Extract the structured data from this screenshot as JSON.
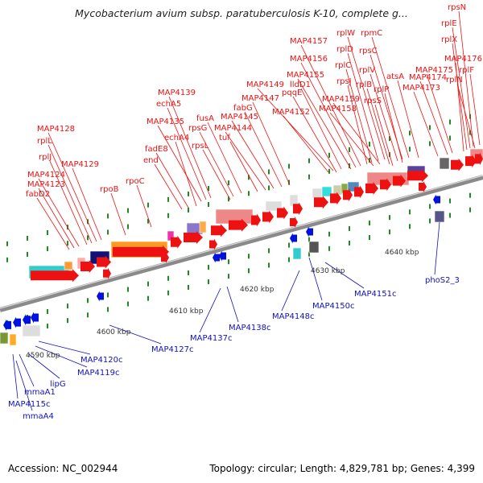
{
  "header": {
    "title": "Mycobacterium avium subsp. paratuberculosis K-10, complete g..."
  },
  "footer": {
    "accession": "Accession: NC_002944",
    "summary": "Topology: circular; Length: 4,829,781 bp; Genes: 4,399"
  },
  "colors": {
    "forward_label": "#ee1111",
    "reverse_label": "#1111bb",
    "forward_gene": "#ee1111",
    "reverse_gene": "#0011dd",
    "backbone": "#888888"
  },
  "scale_labels": [
    "4590 kbp",
    "4600 kbp",
    "4610 kbp",
    "4620 kbp",
    "4630 kbp",
    "4640 kbp"
  ],
  "forward_labels": [
    "rpsN",
    "rplE",
    "rplX",
    "MAP4176",
    "rplF",
    "MAP4175",
    "rplN",
    "MAP4174",
    "MAP4173",
    "rpmC",
    "atsA",
    "rplW",
    "rpsC",
    "rplD",
    "rplV",
    "rplC",
    "rplP",
    "rpsJ",
    "rplB",
    "rpsS",
    "MAP4157",
    "MAP4156",
    "MAP4155",
    "MAP4159",
    "MAP4158",
    "lldD1",
    "MAP4149",
    "pqqE",
    "MAP4152",
    "MAP4147",
    "fabG",
    "MAP4145",
    "fusA",
    "MAP4144",
    "tuf",
    "MAP4139",
    "echA5",
    "MAP4135",
    "rpsG",
    "rpsL",
    "echA4",
    "fadE8",
    "end",
    "MAP4128",
    "rplL",
    "rplJ",
    "MAP4129",
    "MAP4124",
    "MAP4123",
    "fabD2",
    "rpoB",
    "rpoC"
  ],
  "reverse_labels": [
    "phoS2_3",
    "MAP4151c",
    "MAP4150c",
    "MAP4148c",
    "MAP4138c",
    "MAP4137c",
    "MAP4127c",
    "MAP4120c",
    "MAP4119c",
    "lipG",
    "mmaA1",
    "MAP4115c",
    "mmaA4"
  ]
}
